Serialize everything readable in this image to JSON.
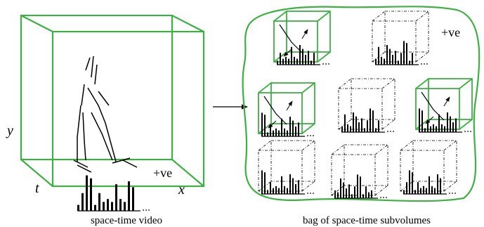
{
  "labels": {
    "y_axis": "y",
    "t_axis": "t",
    "x_axis": "x",
    "video_tag": "+ve",
    "video_caption": "space-time video",
    "bag_tag": "+ve",
    "bag_caption": "bag of space-time subvolumes"
  }
}
